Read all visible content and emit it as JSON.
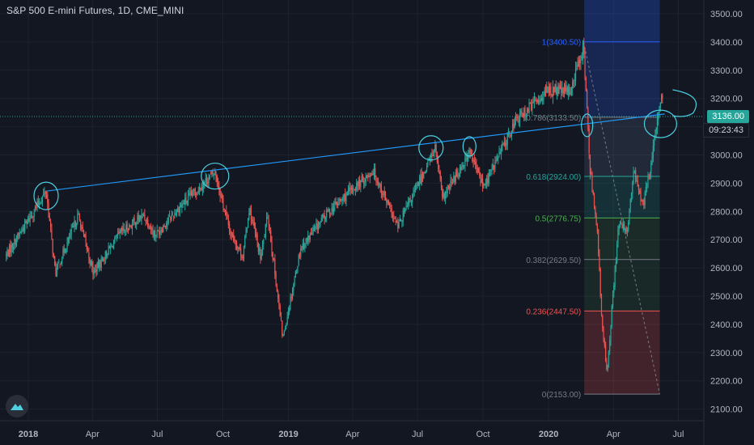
{
  "header": {
    "title": "S&P 500 E-mini Futures, 1D, CME_MINI"
  },
  "badges": {
    "last_price": "3136.00",
    "countdown": "09:23:43"
  },
  "colors": {
    "background": "#131722",
    "up": "#26a69a",
    "down": "#ef5350",
    "trendline": "#2196f3",
    "annotation": "#4dd0e1",
    "fib_red": "#ef5350",
    "fib_green": "#4caf50",
    "fib_gray": "#787b86",
    "fib_blue": "#2962ff"
  },
  "chart_data": {
    "type": "candlestick",
    "title": "S&P 500 E-mini Futures, 1D, CME_MINI",
    "ylim": [
      2100,
      3550
    ],
    "y_ticks": [
      2100,
      2200,
      2300,
      2400,
      2500,
      2600,
      2700,
      2800,
      2900,
      3000,
      3100,
      3200,
      3300,
      3400,
      3500
    ],
    "y_tick_labels": [
      "2100.00",
      "2200.00",
      "2300.00",
      "2400.00",
      "2500.00",
      "2600.00",
      "2700.00",
      "2800.00",
      "2900.00",
      "3000.00",
      "3100.00",
      "3200.00",
      "3300.00",
      "3400.00",
      "3500.00"
    ],
    "x_ticks": [
      "2018",
      "Apr",
      "Jul",
      "Oct",
      "2019",
      "Apr",
      "Jul",
      "Oct",
      "2020",
      "Apr",
      "Jul"
    ],
    "x_tick_bold": [
      true,
      false,
      false,
      false,
      true,
      false,
      false,
      false,
      true,
      false,
      false
    ],
    "price_path": [
      [
        "2017-12-01",
        2645
      ],
      [
        "2018-01-26",
        2872
      ],
      [
        "2018-02-08",
        2581
      ],
      [
        "2018-03-12",
        2786
      ],
      [
        "2018-04-02",
        2582
      ],
      [
        "2018-05-10",
        2723
      ],
      [
        "2018-06-12",
        2787
      ],
      [
        "2018-06-28",
        2716
      ],
      [
        "2018-08-01",
        2815
      ],
      [
        "2018-09-20",
        2940
      ],
      [
        "2018-10-11",
        2728
      ],
      [
        "2018-10-29",
        2641
      ],
      [
        "2018-11-07",
        2813
      ],
      [
        "2018-11-23",
        2633
      ],
      [
        "2018-12-03",
        2790
      ],
      [
        "2018-12-24",
        2351
      ],
      [
        "2019-01-18",
        2670
      ],
      [
        "2019-02-25",
        2796
      ],
      [
        "2019-04-30",
        2945
      ],
      [
        "2019-06-03",
        2744
      ],
      [
        "2019-07-26",
        3026
      ],
      [
        "2019-08-05",
        2844
      ],
      [
        "2019-09-12",
        3009
      ],
      [
        "2019-10-02",
        2887
      ],
      [
        "2019-11-15",
        3120
      ],
      [
        "2019-12-31",
        3230
      ],
      [
        "2020-01-31",
        3225
      ],
      [
        "2020-02-19",
        3386
      ],
      [
        "2020-02-28",
        2954
      ],
      [
        "2020-03-09",
        2746
      ],
      [
        "2020-03-16",
        2390
      ],
      [
        "2020-03-23",
        2237
      ],
      [
        "2020-04-08",
        2749
      ],
      [
        "2020-04-21",
        2737
      ],
      [
        "2020-04-29",
        2939
      ],
      [
        "2020-05-13",
        2820
      ],
      [
        "2020-05-28",
        3036
      ],
      [
        "2020-06-08",
        3232
      ],
      [
        "2020-06-10",
        3136
      ]
    ],
    "last_price": 3136,
    "trendline": [
      [
        "2018-01-26",
        2872
      ],
      [
        "2020-06-12",
        3145
      ]
    ],
    "fibonacci": {
      "from": 2153.0,
      "to": 3400.5,
      "x_start": "2020-02-20",
      "x_end": "2020-06-05",
      "levels": [
        {
          "ratio": 1,
          "price": 3400.5,
          "label": "1(3400.50)",
          "color": "#2962ff"
        },
        {
          "ratio": 0.786,
          "price": 3133.5,
          "label": "0.786(3133.50)",
          "color": "#787b86"
        },
        {
          "ratio": 0.618,
          "price": 2924.0,
          "label": "0.618(2924.00)",
          "color": "#26a69a"
        },
        {
          "ratio": 0.5,
          "price": 2776.75,
          "label": "0.5(2776.75)",
          "color": "#4caf50"
        },
        {
          "ratio": 0.382,
          "price": 2629.5,
          "label": "0.382(2629.50)",
          "color": "#787b86"
        },
        {
          "ratio": 0.236,
          "price": 2447.5,
          "label": "0.236(2447.50)",
          "color": "#ef5350"
        },
        {
          "ratio": 0,
          "price": 2153.0,
          "label": "0(2153.00)",
          "color": "#787b86"
        }
      ]
    },
    "grid": true
  }
}
